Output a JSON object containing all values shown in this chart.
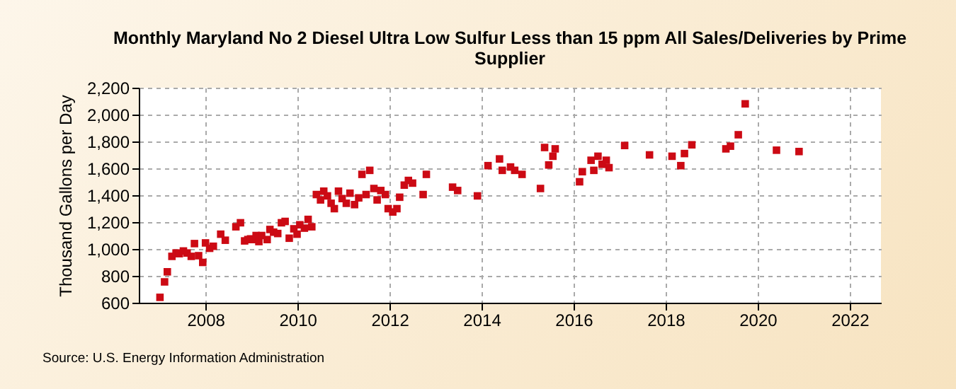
{
  "chart_data": {
    "type": "scatter",
    "title": "Monthly Maryland No 2 Diesel Ultra Low Sulfur Less than 15 ppm All Sales/Deliveries by Prime Supplier",
    "ylabel": "Thousand Gallons per Day",
    "annotations": [
      "Source: U.S. Energy Information Administration"
    ],
    "x": [
      2007.01,
      2007.11,
      2007.17,
      2007.27,
      2007.36,
      2007.43,
      2007.52,
      2007.6,
      2007.69,
      2007.76,
      2007.85,
      2007.94,
      2008.0,
      2008.09,
      2008.17,
      2008.33,
      2008.43,
      2008.66,
      2008.76,
      2008.85,
      2008.92,
      2008.98,
      2009.04,
      2009.1,
      2009.16,
      2009.22,
      2009.34,
      2009.4,
      2009.48,
      2009.57,
      2009.65,
      2009.73,
      2009.82,
      2009.92,
      2009.99,
      2010.05,
      2010.15,
      2010.23,
      2010.31,
      2010.41,
      2010.5,
      2010.57,
      2010.65,
      2010.73,
      2010.8,
      2010.89,
      2010.97,
      2011.06,
      2011.14,
      2011.24,
      2011.33,
      2011.4,
      2011.49,
      2011.57,
      2011.66,
      2011.73,
      2011.81,
      2011.91,
      2011.97,
      2012.07,
      2012.16,
      2012.22,
      2012.32,
      2012.41,
      2012.5,
      2012.73,
      2012.8,
      2013.37,
      2013.48,
      2013.91,
      2014.14,
      2014.39,
      2014.45,
      2014.63,
      2014.72,
      2014.88,
      2015.28,
      2015.37,
      2015.46,
      2015.55,
      2015.6,
      2016.13,
      2016.19,
      2016.38,
      2016.44,
      2016.53,
      2016.62,
      2016.71,
      2016.77,
      2017.11,
      2017.65,
      2018.14,
      2018.33,
      2018.41,
      2018.57,
      2019.31,
      2019.41,
      2019.58,
      2019.73,
      2020.41,
      2020.9
    ],
    "series": [
      {
        "color": "#cc0a14",
        "values": [
          640,
          755,
          830,
          945,
          970,
          965,
          985,
          970,
          945,
          1040,
          950,
          900,
          1045,
          1005,
          1020,
          1110,
          1065,
          1165,
          1195,
          1060,
          1070,
          1075,
          1070,
          1100,
          1055,
          1100,
          1070,
          1145,
          1125,
          1115,
          1195,
          1205,
          1080,
          1150,
          1110,
          1180,
          1155,
          1220,
          1165,
          1405,
          1365,
          1430,
          1395,
          1340,
          1300,
          1430,
          1375,
          1340,
          1415,
          1330,
          1380,
          1555,
          1405,
          1585,
          1450,
          1365,
          1435,
          1405,
          1300,
          1275,
          1300,
          1385,
          1475,
          1510,
          1490,
          1405,
          1555,
          1460,
          1435,
          1395,
          1620,
          1670,
          1585,
          1610,
          1585,
          1555,
          1450,
          1755,
          1625,
          1690,
          1745,
          1500,
          1575,
          1660,
          1585,
          1690,
          1630,
          1660,
          1605,
          1770,
          1700,
          1690,
          1620,
          1710,
          1775,
          1745,
          1765,
          1850,
          2080,
          1735,
          1725
        ]
      }
    ],
    "xlim": [
      2006.55,
      2022.68
    ],
    "xticks": [
      2008,
      2010,
      2012,
      2014,
      2016,
      2018,
      2020,
      2022
    ],
    "ylim": [
      600,
      2200
    ],
    "yticks": [
      600,
      800,
      {
        "value": 1000,
        "label": "1,000"
      },
      {
        "value": 1200,
        "label": "1,200"
      },
      {
        "value": 1400,
        "label": "1,400"
      },
      {
        "value": 1600,
        "label": "1,600"
      },
      {
        "value": 1800,
        "label": "1,800"
      },
      {
        "value": 2000,
        "label": "2,000"
      },
      {
        "value": 2200,
        "label": "2,200"
      }
    ],
    "grid": true,
    "marker": "square"
  }
}
